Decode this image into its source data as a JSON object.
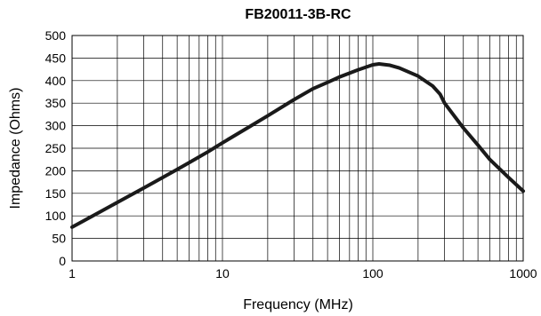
{
  "chart_data": {
    "type": "line",
    "title": "FB20011-3B-RC",
    "xlabel": "Frequency (MHz)",
    "ylabel": "Impedance (Ohms)",
    "xscale": "log",
    "xlim": [
      1,
      1000
    ],
    "ylim": [
      0,
      500
    ],
    "grid": true,
    "x_tick_labels": [
      "1",
      "10",
      "100",
      "1000"
    ],
    "y_tick_labels": [
      "0",
      "50",
      "100",
      "150",
      "200",
      "250",
      "300",
      "350",
      "400",
      "450",
      "500"
    ],
    "series": [
      {
        "x": [
          1,
          1.5,
          2,
          3,
          4,
          5,
          6,
          8,
          10,
          15,
          20,
          30,
          40,
          50,
          60,
          80,
          100,
          110,
          130,
          150,
          200,
          250,
          280,
          300,
          400,
          500,
          600,
          800,
          1000
        ],
        "y": [
          75,
          107,
          130,
          162,
          185,
          203,
          218,
          242,
          262,
          297,
          322,
          358,
          382,
          396,
          408,
          424,
          435,
          437,
          434,
          428,
          410,
          388,
          370,
          350,
          295,
          257,
          225,
          185,
          155
        ],
        "color": "#1a1a1a"
      }
    ]
  }
}
